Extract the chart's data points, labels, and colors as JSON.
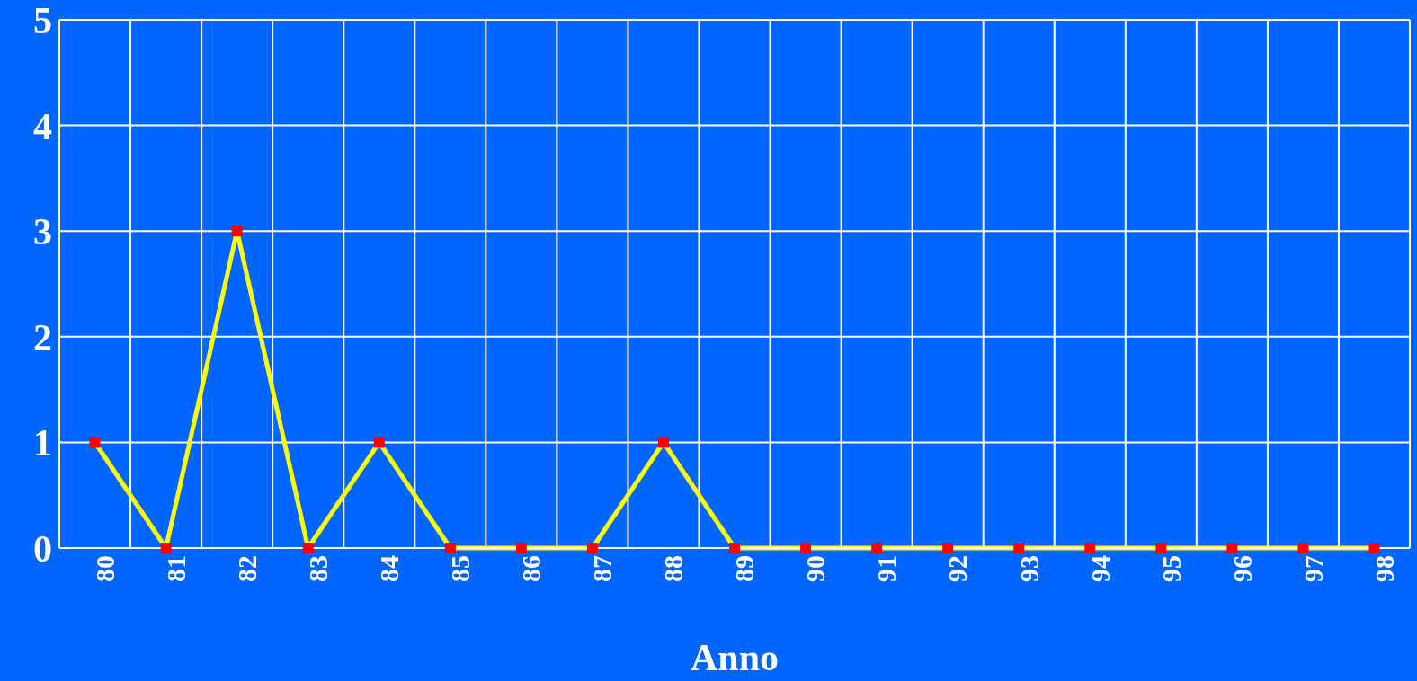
{
  "chart_data": {
    "type": "line",
    "xlabel": "Anno",
    "categories": [
      "80",
      "81",
      "82",
      "83",
      "84",
      "85",
      "86",
      "87",
      "88",
      "89",
      "90",
      "91",
      "92",
      "93",
      "94",
      "95",
      "96",
      "97",
      "98"
    ],
    "series": [
      {
        "color": "#ffff00",
        "values": [
          1,
          0,
          3,
          0,
          1,
          0,
          0,
          0,
          1,
          0,
          0,
          0,
          0,
          0,
          0,
          0,
          0,
          0,
          0
        ]
      }
    ],
    "ylim": [
      0,
      5
    ],
    "yticks": [
      0,
      1,
      2,
      3,
      4,
      5
    ],
    "grid": true,
    "marker": "square",
    "line_style": "solid"
  }
}
